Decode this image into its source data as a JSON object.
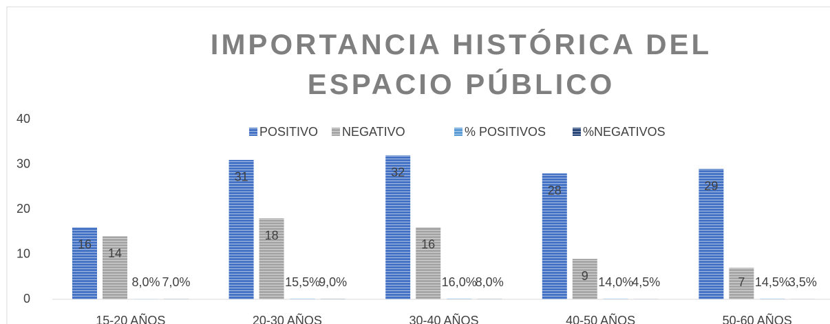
{
  "chart_data": {
    "type": "bar",
    "title": "IMPORTANCIA HISTÓRICA DEL ESPACIO PÚBLICO",
    "categories": [
      "15-20 AÑOS",
      "20-30 AÑOS",
      "30-40 AÑOS",
      "40-50 AÑOS",
      "50-60 AÑOS"
    ],
    "series": [
      {
        "name": "POSITIVO",
        "color": "#4472c4",
        "values": [
          16,
          31,
          32,
          28,
          29
        ]
      },
      {
        "name": "NEGATIVO",
        "color": "#a5a5a5",
        "values": [
          14,
          18,
          16,
          9,
          7
        ]
      },
      {
        "name": "% POSITIVOS",
        "color": "#5b9bd5",
        "values": [
          0.08,
          0.155,
          0.16,
          0.14,
          0.145
        ],
        "value_labels": [
          "8,0%",
          "15,5%",
          "16,0%",
          "14,0%",
          "14,5%"
        ]
      },
      {
        "name": "%NEGATIVOS",
        "color": "#264478",
        "values": [
          0.07,
          0.09,
          0.08,
          0.045,
          0.035
        ],
        "value_labels": [
          "7,0%",
          "9,0%",
          "8,0%",
          "4,5%",
          "3,5%"
        ]
      }
    ],
    "ylim": [
      0,
      40
    ],
    "yticks": [
      0,
      10,
      20,
      30,
      40
    ],
    "grid": false,
    "legend": "top"
  }
}
